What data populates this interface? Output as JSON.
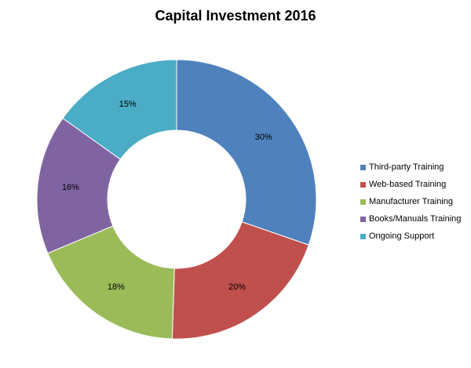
{
  "chart_data": {
    "type": "pie",
    "title": "Capital Investment 2016",
    "categories": [
      "Third-party Training",
      "Web-based Training",
      "Manufacturer Training",
      "Books/Manuals Training",
      "Ongoing Support"
    ],
    "values": [
      30,
      20,
      18,
      16,
      15
    ],
    "value_labels": [
      "30%",
      "20%",
      "18%",
      "16%",
      "15%"
    ],
    "colors": [
      "#4f81bd",
      "#c0504d",
      "#9bbb59",
      "#8064a2",
      "#4bacc6"
    ],
    "donut": true,
    "legend_position": "right"
  }
}
